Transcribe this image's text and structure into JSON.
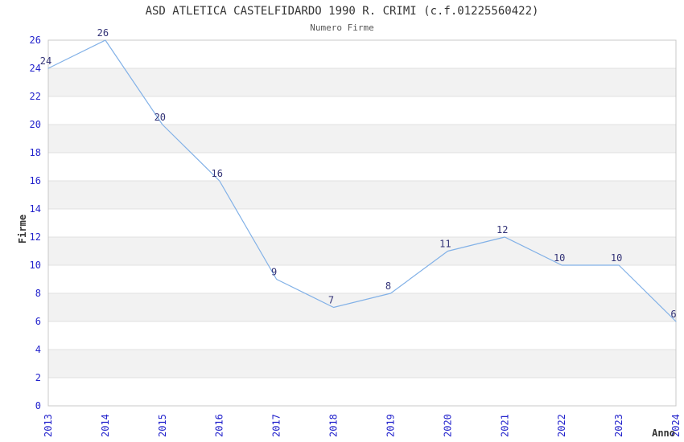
{
  "chart_data": {
    "type": "line",
    "title": "ASD ATLETICA CASTELFIDARDO 1990 R. CRIMI (c.f.01225560422)",
    "subtitle": "Numero Firme",
    "xlabel": "Anno",
    "ylabel": "Firme",
    "x": [
      "2013",
      "2014",
      "2015",
      "2016",
      "2017",
      "2018",
      "2019",
      "2020",
      "2021",
      "2022",
      "2023",
      "2024"
    ],
    "values": [
      24,
      26,
      20,
      16,
      9,
      7,
      8,
      11,
      12,
      10,
      10,
      6
    ],
    "point_labels": [
      "24",
      "26",
      "20",
      "16",
      "9",
      "7",
      "8",
      "11",
      "12",
      "10",
      "10",
      "6"
    ],
    "ylim": [
      0,
      26
    ],
    "ytick_step": 2,
    "yticks": [
      0,
      2,
      4,
      6,
      8,
      10,
      12,
      14,
      16,
      18,
      20,
      22,
      24,
      26
    ],
    "grid": true,
    "alternating_bands": true,
    "legend": "none",
    "colors": {
      "line": "#82b1e7",
      "tick_label": "#2222cc",
      "point_label": "#333377",
      "band": "#f2f2f2",
      "grid": "#e0e0e0",
      "border": "#c8c8c8",
      "title": "#333333",
      "subtitle": "#555555",
      "axis_title": "#333333",
      "background": "#ffffff"
    }
  }
}
